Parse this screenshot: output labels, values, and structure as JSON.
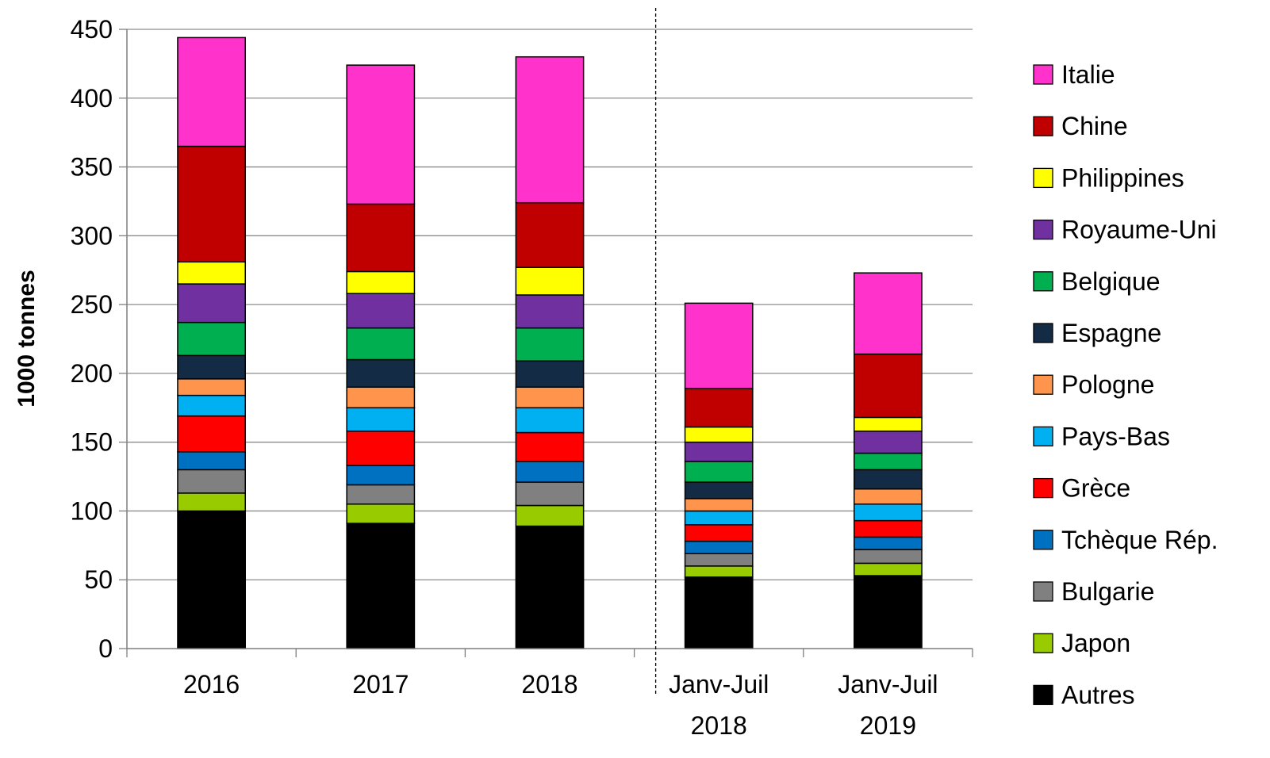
{
  "chart_data": {
    "type": "bar",
    "stacked": true,
    "title": "",
    "xlabel": "",
    "ylabel": "1000 tonnes",
    "ylim": [
      0,
      450
    ],
    "yticks": [
      0,
      50,
      100,
      150,
      200,
      250,
      300,
      350,
      400,
      450
    ],
    "grid": true,
    "legend_position": "right",
    "separator_after_category": 2,
    "categories": [
      [
        "2016"
      ],
      [
        "2017"
      ],
      [
        "2018"
      ],
      [
        "Janv-Juil",
        "2018"
      ],
      [
        "Janv-Juil",
        "2019"
      ]
    ],
    "series": [
      {
        "name": "Autres",
        "color": "#000000",
        "values": [
          100,
          91,
          89,
          52,
          53
        ]
      },
      {
        "name": "Japon",
        "color": "#99CC00",
        "values": [
          13,
          14,
          15,
          8,
          9
        ]
      },
      {
        "name": "Bulgarie",
        "color": "#808080",
        "values": [
          17,
          14,
          17,
          9,
          10
        ]
      },
      {
        "name": "Tchèque Rép.",
        "color": "#0070C0",
        "values": [
          13,
          14,
          15,
          9,
          9
        ]
      },
      {
        "name": "Grèce",
        "color": "#FF0000",
        "values": [
          26,
          25,
          21,
          12,
          12
        ]
      },
      {
        "name": "Pays-Bas",
        "color": "#00B0F0",
        "values": [
          15,
          17,
          18,
          10,
          12
        ]
      },
      {
        "name": "Pologne",
        "color": "#FF944D",
        "values": [
          12,
          15,
          15,
          9,
          11
        ]
      },
      {
        "name": "Espagne",
        "color": "#132B45",
        "values": [
          17,
          20,
          19,
          12,
          14
        ]
      },
      {
        "name": "Belgique",
        "color": "#00B050",
        "values": [
          24,
          23,
          24,
          15,
          12
        ]
      },
      {
        "name": "Royaume-Uni",
        "color": "#7030A0",
        "values": [
          28,
          25,
          24,
          14,
          16
        ]
      },
      {
        "name": "Philippines",
        "color": "#FFFF00",
        "values": [
          16,
          16,
          20,
          11,
          10
        ]
      },
      {
        "name": "Chine",
        "color": "#C00000",
        "values": [
          84,
          49,
          47,
          28,
          46
        ]
      },
      {
        "name": "Italie",
        "color": "#FF33CC",
        "values": [
          79,
          101,
          106,
          62,
          59
        ]
      }
    ]
  }
}
